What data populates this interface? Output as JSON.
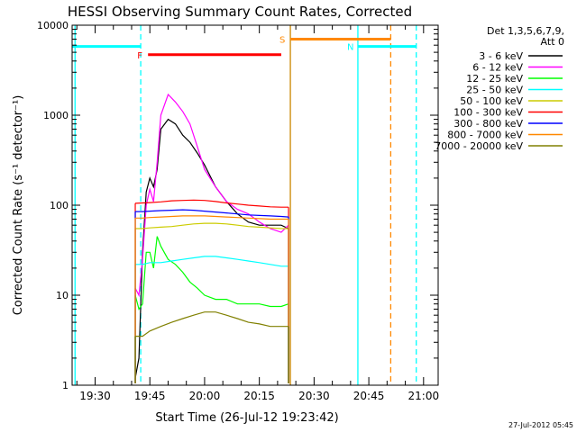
{
  "chart_data": {
    "type": "line",
    "title": "HESSI Observing Summary Count Rates, Corrected",
    "xlabel": "Start Time (26-Jul-12 19:23:42)",
    "ylabel": "Corrected Count Rate (s⁻¹ detector⁻¹)",
    "y_scale": "log",
    "ylim": [
      1,
      10000
    ],
    "xlim": [
      "19:23:42",
      "21:04:00"
    ],
    "x_ticks": [
      "19:30",
      "19:45",
      "20:00",
      "20:15",
      "20:30",
      "20:45",
      "21:00"
    ],
    "y_ticks": [
      "1",
      "10",
      "100",
      "1000",
      "10000"
    ],
    "grid": false,
    "legend": {
      "position": "right",
      "header_lines": [
        "Det 1,3,5,6,7,9,",
        "Att 0"
      ],
      "entries": [
        {
          "label": "3 - 6 keV",
          "color": "#000000"
        },
        {
          "label": "6 - 12 keV",
          "color": "#ff00ff"
        },
        {
          "label": "12 - 25 keV",
          "color": "#00ff00"
        },
        {
          "label": "25 - 50 keV",
          "color": "#00ffff"
        },
        {
          "label": "50 - 100 keV",
          "color": "#cccc00"
        },
        {
          "label": "100 - 300 keV",
          "color": "#ff0000"
        },
        {
          "label": "300 - 800 keV",
          "color": "#0000ff"
        },
        {
          "label": "800 - 7000 keV",
          "color": "#ff8800"
        },
        {
          "label": "7000 - 20000 keV",
          "color": "#808000"
        }
      ]
    },
    "series": [
      {
        "color": "#000000",
        "x": [
          "19:41:00",
          "19:42:00",
          "19:43:00",
          "19:44:00",
          "19:45:00",
          "19:46:00",
          "19:47:00",
          "19:48:00",
          "19:50:00",
          "19:52:00",
          "19:54:00",
          "19:56:00",
          "19:58:00",
          "20:00:00",
          "20:03:00",
          "20:06:00",
          "20:09:00",
          "20:12:00",
          "20:15:00",
          "20:18:00",
          "20:21:00",
          "20:23:00"
        ],
        "y": [
          1.2,
          2,
          30,
          140,
          200,
          160,
          250,
          700,
          900,
          800,
          600,
          500,
          380,
          280,
          160,
          110,
          80,
          65,
          60,
          60,
          60,
          55
        ]
      },
      {
        "color": "#ff00ff",
        "x": [
          "19:41:00",
          "19:42:00",
          "19:43:00",
          "19:44:00",
          "19:45:00",
          "19:46:00",
          "19:47:00",
          "19:48:00",
          "19:50:00",
          "19:52:00",
          "19:54:00",
          "19:56:00",
          "19:58:00",
          "20:00:00",
          "20:03:00",
          "20:06:00",
          "20:09:00",
          "20:12:00",
          "20:15:00",
          "20:18:00",
          "20:21:00",
          "20:23:00"
        ],
        "y": [
          12,
          10,
          25,
          100,
          150,
          110,
          300,
          1000,
          1700,
          1400,
          1100,
          800,
          450,
          250,
          160,
          110,
          90,
          80,
          65,
          55,
          50,
          60
        ]
      },
      {
        "color": "#00ff00",
        "x": [
          "19:41:00",
          "19:42:00",
          "19:43:00",
          "19:44:00",
          "19:45:00",
          "19:46:00",
          "19:47:00",
          "19:48:00",
          "19:50:00",
          "19:52:00",
          "19:54:00",
          "19:56:00",
          "19:58:00",
          "20:00:00",
          "20:03:00",
          "20:06:00",
          "20:09:00",
          "20:12:00",
          "20:15:00",
          "20:18:00",
          "20:21:00",
          "20:23:00"
        ],
        "y": [
          10,
          7,
          8,
          30,
          30,
          20,
          45,
          35,
          25,
          22,
          18,
          14,
          12,
          10,
          9,
          9,
          8,
          8,
          8,
          7.5,
          7.5,
          8
        ]
      },
      {
        "color": "#00ffff",
        "x": [
          "19:41:00",
          "19:43:00",
          "19:45:00",
          "19:48:00",
          "19:51:00",
          "19:54:00",
          "19:57:00",
          "20:00:00",
          "20:03:00",
          "20:06:00",
          "20:09:00",
          "20:12:00",
          "20:15:00",
          "20:18:00",
          "20:21:00",
          "20:23:00"
        ],
        "y": [
          22,
          22,
          23,
          23,
          24,
          25,
          26,
          27,
          27,
          26,
          25,
          24,
          23,
          22,
          21,
          21
        ]
      },
      {
        "color": "#cccc00",
        "x": [
          "19:41:00",
          "19:43:00",
          "19:45:00",
          "19:48:00",
          "19:51:00",
          "19:54:00",
          "19:57:00",
          "20:00:00",
          "20:03:00",
          "20:06:00",
          "20:09:00",
          "20:12:00",
          "20:15:00",
          "20:18:00",
          "20:21:00",
          "20:23:00"
        ],
        "y": [
          55,
          55,
          56,
          57,
          58,
          60,
          62,
          63,
          63,
          62,
          60,
          58,
          57,
          56,
          55,
          55
        ]
      },
      {
        "color": "#ff0000",
        "x": [
          "19:41:00",
          "19:43:00",
          "19:45:00",
          "19:48:00",
          "19:51:00",
          "19:54:00",
          "19:57:00",
          "20:00:00",
          "20:03:00",
          "20:06:00",
          "20:09:00",
          "20:12:00",
          "20:15:00",
          "20:18:00",
          "20:21:00",
          "20:23:00"
        ],
        "y": [
          105,
          106,
          107,
          109,
          112,
          113,
          114,
          113,
          110,
          106,
          103,
          100,
          98,
          96,
          95,
          95
        ]
      },
      {
        "color": "#0000ff",
        "x": [
          "19:41:00",
          "19:43:00",
          "19:45:00",
          "19:48:00",
          "19:51:00",
          "19:54:00",
          "19:57:00",
          "20:00:00",
          "20:03:00",
          "20:06:00",
          "20:09:00",
          "20:12:00",
          "20:15:00",
          "20:18:00",
          "20:21:00",
          "20:23:00"
        ],
        "y": [
          85,
          85,
          86,
          87,
          88,
          89,
          88,
          86,
          84,
          82,
          80,
          78,
          77,
          76,
          75,
          74
        ]
      },
      {
        "color": "#ff8800",
        "x": [
          "19:41:00",
          "19:43:00",
          "19:45:00",
          "19:48:00",
          "19:51:00",
          "19:54:00",
          "19:57:00",
          "20:00:00",
          "20:03:00",
          "20:06:00",
          "20:09:00",
          "20:12:00",
          "20:15:00",
          "20:18:00",
          "20:21:00",
          "20:23:00"
        ],
        "y": [
          72,
          72,
          73,
          74,
          75,
          76,
          76,
          76,
          75,
          74,
          73,
          72,
          71,
          70,
          70,
          70
        ]
      },
      {
        "color": "#808000",
        "x": [
          "19:41:00",
          "19:43:00",
          "19:45:00",
          "19:48:00",
          "19:51:00",
          "19:54:00",
          "19:57:00",
          "20:00:00",
          "20:03:00",
          "20:06:00",
          "20:09:00",
          "20:12:00",
          "20:15:00",
          "20:18:00",
          "20:21:00",
          "20:23:00"
        ],
        "y": [
          3.5,
          3.5,
          4,
          4.5,
          5,
          5.5,
          6,
          6.5,
          6.5,
          6,
          5.5,
          5,
          4.8,
          4.5,
          4.5,
          4.5
        ]
      }
    ],
    "flag_bars": [
      {
        "label": "",
        "color": "#00ffff",
        "x0": "19:23:42",
        "x1": "19:42:30",
        "y": 5800
      },
      {
        "label": "N",
        "color": "#00ffff",
        "x0": "20:42:00",
        "x1": "20:58:00",
        "y": 5800
      },
      {
        "label": "F",
        "color": "#ff0000",
        "x0": "19:44:30",
        "x1": "20:21:00",
        "y": 4700
      },
      {
        "label": "S",
        "color": "#ff8800",
        "x0": "20:23:30",
        "x1": "20:51:00",
        "y": 7000
      }
    ],
    "vertical_lines": [
      {
        "x": "19:24:30",
        "color": "#00ffff",
        "style": "solid"
      },
      {
        "x": "19:42:30",
        "color": "#00ffff",
        "style": "dashed"
      },
      {
        "x": "20:23:30",
        "color": "#cc8800",
        "style": "solid"
      },
      {
        "x": "20:42:00",
        "color": "#00ffff",
        "style": "solid"
      },
      {
        "x": "20:51:00",
        "color": "#ff8800",
        "style": "dashed"
      },
      {
        "x": "20:58:00",
        "color": "#00ffff",
        "style": "dashed"
      }
    ],
    "footer_timestamp": "27-Jul-2012 05:45"
  }
}
